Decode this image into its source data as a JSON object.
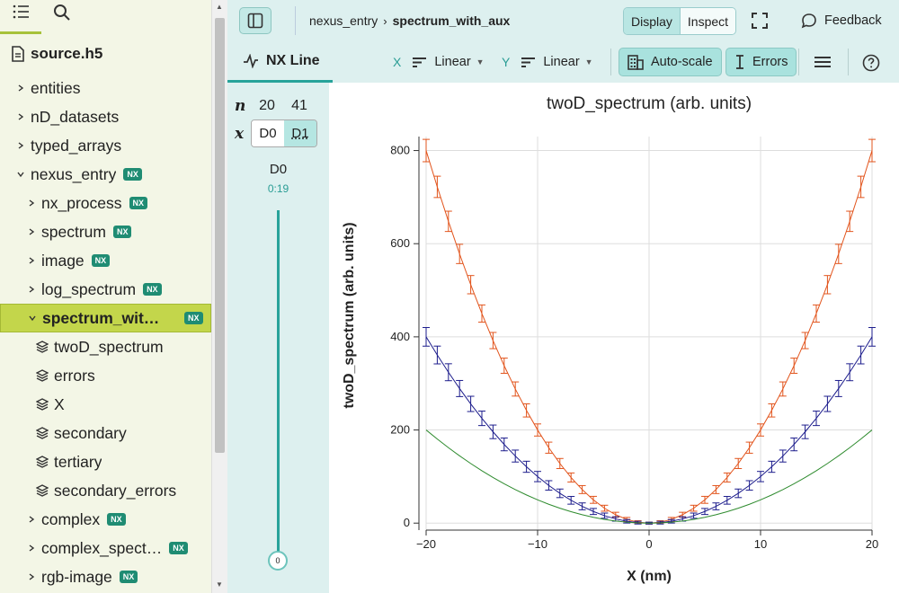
{
  "sidebar": {
    "file_name": "source.h5",
    "items": [
      {
        "label": "entities",
        "depth": 0,
        "nx": false,
        "open": false
      },
      {
        "label": "nD_datasets",
        "depth": 0,
        "nx": false,
        "open": false
      },
      {
        "label": "typed_arrays",
        "depth": 0,
        "nx": false,
        "open": false
      },
      {
        "label": "nexus_entry",
        "depth": 0,
        "nx": true,
        "open": true
      },
      {
        "label": "nx_process",
        "depth": 1,
        "nx": true,
        "open": false
      },
      {
        "label": "spectrum",
        "depth": 1,
        "nx": true,
        "open": false
      },
      {
        "label": "image",
        "depth": 1,
        "nx": true,
        "open": false
      },
      {
        "label": "log_spectrum",
        "depth": 1,
        "nx": true,
        "open": false
      },
      {
        "label": "spectrum_wit…",
        "depth": 1,
        "nx": true,
        "open": true,
        "selected": true
      },
      {
        "label": "twoD_spectrum",
        "depth": 2,
        "dataset": true
      },
      {
        "label": "errors",
        "depth": 2,
        "dataset": true
      },
      {
        "label": "X",
        "depth": 2,
        "dataset": true
      },
      {
        "label": "secondary",
        "depth": 2,
        "dataset": true
      },
      {
        "label": "tertiary",
        "depth": 2,
        "dataset": true
      },
      {
        "label": "secondary_errors",
        "depth": 2,
        "dataset": true
      },
      {
        "label": "complex",
        "depth": 1,
        "nx": true,
        "open": false
      },
      {
        "label": "complex_spect…",
        "depth": 1,
        "nx": true,
        "open": false
      },
      {
        "label": "rgb-image",
        "depth": 1,
        "nx": true,
        "open": false
      }
    ],
    "nx_badge": "NX"
  },
  "topbar": {
    "breadcrumb_parent": "nexus_entry",
    "breadcrumb_current": "spectrum_with_aux",
    "display_label": "Display",
    "inspect_label": "Inspect",
    "feedback_label": "Feedback"
  },
  "vizbar": {
    "tab_label": "NX Line",
    "x_letter": "X",
    "x_scale": "Linear",
    "y_letter": "Y",
    "y_scale": "Linear",
    "autoscale_label": "Auto-scale",
    "errors_label": "Errors"
  },
  "dims": {
    "n_label": "n",
    "x_label": "x",
    "n_values": [
      "20",
      "41"
    ],
    "buttons": [
      "D0",
      "D1"
    ],
    "slider_dim": "D0",
    "slider_range": "0:19",
    "slider_value": "0"
  },
  "chart_data": {
    "type": "line",
    "title": "twoD_spectrum (arb. units)",
    "xlabel": "X (nm)",
    "ylabel": "twoD_spectrum (arb. units)",
    "xlim": [
      -20,
      20
    ],
    "ylim": [
      -15,
      830
    ],
    "x_ticks": [
      "−20",
      "−10",
      "0",
      "10",
      "20"
    ],
    "y_ticks": [
      "0",
      "200",
      "400",
      "600",
      "800"
    ],
    "grid": true,
    "x": [
      -20,
      -19,
      -18,
      -17,
      -16,
      -15,
      -14,
      -13,
      -12,
      -11,
      -10,
      -9,
      -8,
      -7,
      -6,
      -5,
      -4,
      -3,
      -2,
      -1,
      0,
      1,
      2,
      3,
      4,
      5,
      6,
      7,
      8,
      9,
      10,
      11,
      12,
      13,
      14,
      15,
      16,
      17,
      18,
      19,
      20
    ],
    "series": [
      {
        "color": "#e2541c",
        "coef": 2.0,
        "errors": true
      },
      {
        "color": "#1c1c8c",
        "coef": 1.0,
        "errors": true
      },
      {
        "color": "#2e8b2e",
        "coef": 0.5,
        "errors": false
      }
    ]
  }
}
